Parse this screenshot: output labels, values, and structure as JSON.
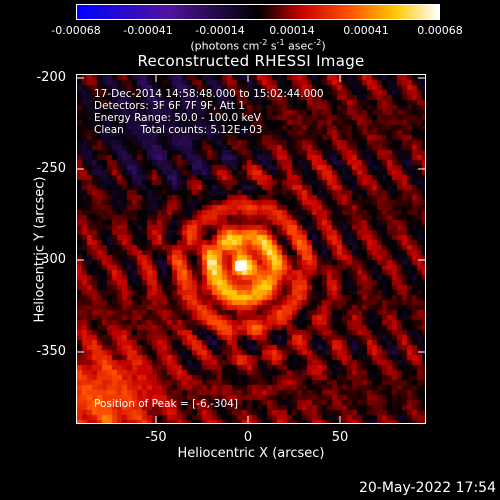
{
  "colorbar": {
    "tick_labels": [
      "-0.00068",
      "-0.00041",
      "-0.00014",
      "0.00014",
      "0.00041",
      "0.00068"
    ],
    "units_text": "(photons cm",
    "units_sup1": "-2",
    "units_mid": " s",
    "units_sup2": "-1",
    "units_mid2": " asec",
    "units_sup3": "-2",
    "units_end": ")"
  },
  "title": "Reconstructed RHESSI Image",
  "info": {
    "time": "17-Dec-2014 14:58:48.000 to 15:02:44.000",
    "detectors": "Detectors: 3F 6F 7F 9F, Att 1",
    "energy": "Energy Range: 50.0 - 100.0 keV",
    "clean": "Clean     Total counts: 5.12E+03"
  },
  "peak_label": "Position of Peak = [-6,-304]",
  "axes": {
    "x_label": "Heliocentric X (arcsec)",
    "y_label": "Heliocentric Y (arcsec)",
    "x_ticks": [
      "-50",
      "0",
      "50"
    ],
    "y_ticks": [
      "-200",
      "-250",
      "-300",
      "-350"
    ]
  },
  "footer_date": "20-May-2022 17:54",
  "colors": {
    "negative": "#0000ff",
    "zero": "#000000",
    "mid": "#ff2a00",
    "high": "#ffff00",
    "peak": "#ffffff"
  }
}
